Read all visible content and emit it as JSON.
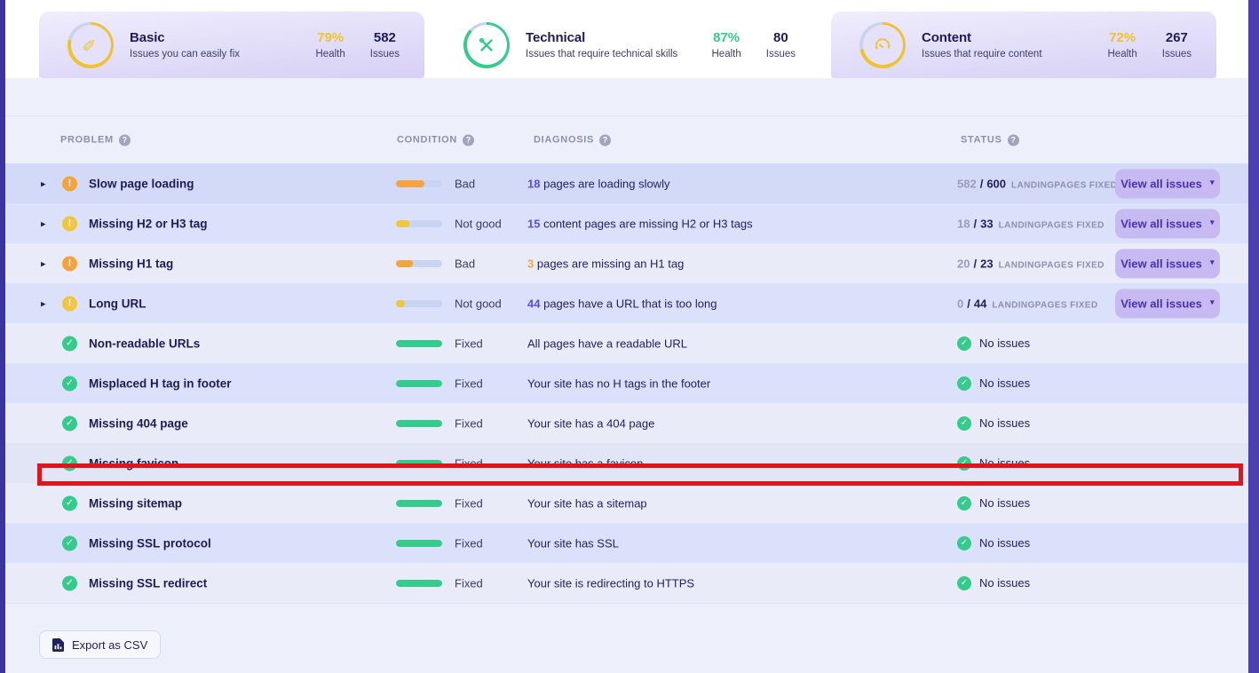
{
  "icons": {
    "caret": "▾",
    "expand_arrow": "▸",
    "check": "✓",
    "warning": "!",
    "help": "?"
  },
  "colors": {
    "accent_purple": "#5b4fe0",
    "green": "#35cb8d",
    "orange": "#f5a33c",
    "yellow": "#f2c53d",
    "ring_rest": "#c9d3ea",
    "highlight_red": "#e0151b"
  },
  "labels": {
    "health": "Health",
    "issues": "Issues"
  },
  "tabs": [
    {
      "title": "Basic",
      "subtitle": "Issues you can easily fix",
      "health": "79%",
      "health_pct": 79,
      "health_color": "#eec32f",
      "issues": "582",
      "icon": "pencil-icon",
      "active": false
    },
    {
      "title": "Technical",
      "subtitle": "Issues that require technical skills",
      "health": "87%",
      "health_pct": 87,
      "health_color": "#35cb8d",
      "issues": "80",
      "icon": "tools-icon",
      "active": true
    },
    {
      "title": "Content",
      "subtitle": "Issues that require content",
      "health": "72%",
      "health_pct": 72,
      "health_color": "#eec32f",
      "issues": "267",
      "icon": "gauge-icon",
      "active": false
    }
  ],
  "table": {
    "headers": [
      "PROBLEM",
      "CONDITION",
      "DIAGNOSIS",
      "STATUS"
    ],
    "no_issues": "No issues",
    "rows": [
      {
        "problem": "Slow page loading",
        "severity": "orange",
        "expandable": true,
        "condition": "Bad",
        "bar_pct": 62,
        "bar_color": "#f5a33c",
        "diag_num": "18",
        "diag_num_color": "#5b4fe0",
        "diag_text": "pages are loading slowly",
        "status": "fraction",
        "done": "582",
        "total": "600",
        "suffix": "LANDINGPAGES FIXED",
        "button": "View all issues",
        "highlight": false
      },
      {
        "problem": "Missing H2 or H3 tag",
        "severity": "yellow",
        "expandable": true,
        "condition": "Not good",
        "bar_pct": 28,
        "bar_color": "#f2c53d",
        "diag_num": "15",
        "diag_num_color": "#5b4fe0",
        "diag_text": "content pages are missing H2 or H3 tags",
        "status": "fraction",
        "done": "18",
        "total": "33",
        "suffix": "LANDINGPAGES FIXED",
        "button": "View all issues",
        "highlight": false
      },
      {
        "problem": "Missing H1 tag",
        "severity": "orange",
        "expandable": true,
        "condition": "Bad",
        "bar_pct": 37,
        "bar_color": "#f5a33c",
        "diag_num": "3",
        "diag_num_color": "#f5a33c",
        "diag_text": "pages are missing an H1 tag",
        "status": "fraction",
        "done": "20",
        "total": "23",
        "suffix": "LANDINGPAGES FIXED",
        "button": "View all issues",
        "highlight": false
      },
      {
        "problem": "Long URL",
        "severity": "yellow",
        "expandable": true,
        "condition": "Not good",
        "bar_pct": 20,
        "bar_color": "#f2c53d",
        "diag_num": "44",
        "diag_num_color": "#5b4fe0",
        "diag_text": "pages have a URL that is too long",
        "status": "fraction",
        "done": "0",
        "total": "44",
        "suffix": "LANDINGPAGES FIXED",
        "button": "View all issues",
        "highlight": false
      },
      {
        "problem": "Non-readable URLs",
        "severity": "fixed",
        "expandable": false,
        "condition": "Fixed",
        "bar_pct": 100,
        "bar_color": "#35cb8d",
        "diag_num": "",
        "diag_num_color": "",
        "diag_text": "All pages have a readable URL",
        "status": "ok",
        "highlight": false
      },
      {
        "problem": "Misplaced H tag in footer",
        "severity": "fixed",
        "expandable": false,
        "condition": "Fixed",
        "bar_pct": 100,
        "bar_color": "#35cb8d",
        "diag_num": "",
        "diag_num_color": "",
        "diag_text": "Your site has no H tags in the footer",
        "status": "ok",
        "highlight": false
      },
      {
        "problem": "Missing 404 page",
        "severity": "fixed",
        "expandable": false,
        "condition": "Fixed",
        "bar_pct": 100,
        "bar_color": "#35cb8d",
        "diag_num": "",
        "diag_num_color": "",
        "diag_text": "Your site has a 404 page",
        "status": "ok",
        "highlight": false
      },
      {
        "problem": "Missing favicon",
        "severity": "fixed",
        "expandable": false,
        "condition": "Fixed",
        "bar_pct": 100,
        "bar_color": "#35cb8d",
        "diag_num": "",
        "diag_num_color": "",
        "diag_text": "Your site has a favicon",
        "status": "ok",
        "highlight": true
      },
      {
        "problem": "Missing sitemap",
        "severity": "fixed",
        "expandable": false,
        "condition": "Fixed",
        "bar_pct": 100,
        "bar_color": "#35cb8d",
        "diag_num": "",
        "diag_num_color": "",
        "diag_text": "Your site has a sitemap",
        "status": "ok",
        "highlight": false
      },
      {
        "problem": "Missing SSL protocol",
        "severity": "fixed",
        "expandable": false,
        "condition": "Fixed",
        "bar_pct": 100,
        "bar_color": "#35cb8d",
        "diag_num": "",
        "diag_num_color": "",
        "diag_text": "Your site has SSL",
        "status": "ok",
        "highlight": false
      },
      {
        "problem": "Missing SSL redirect",
        "severity": "fixed",
        "expandable": false,
        "condition": "Fixed",
        "bar_pct": 100,
        "bar_color": "#35cb8d",
        "diag_num": "",
        "diag_num_color": "",
        "diag_text": "Your site is redirecting to HTTPS",
        "status": "ok",
        "highlight": false
      }
    ]
  },
  "footer": {
    "export": "Export as CSV"
  }
}
